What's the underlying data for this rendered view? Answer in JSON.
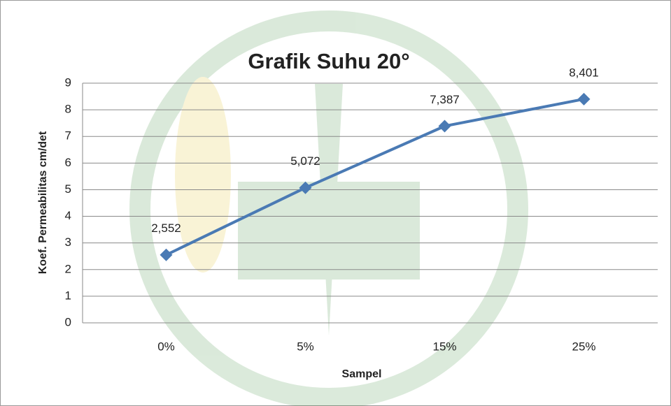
{
  "chart_data": {
    "type": "line",
    "title": "Grafik Suhu 20°",
    "x_label": "Sampel",
    "y_label": "Koef. Permeabilitas cm/det",
    "categories": [
      "0%",
      "5%",
      "15%",
      "25%"
    ],
    "series": [
      {
        "name": "Koef. Permeabilitas",
        "color": "#4a7ab4",
        "values": [
          2.552,
          5.072,
          7.387,
          8.401
        ],
        "value_labels": [
          "2,552",
          "5,072",
          "7,387",
          "8,401"
        ]
      }
    ],
    "ylim": [
      0,
      9
    ],
    "yticks": [
      0,
      1,
      2,
      3,
      4,
      5,
      6,
      7,
      8,
      9
    ],
    "grid": true
  }
}
